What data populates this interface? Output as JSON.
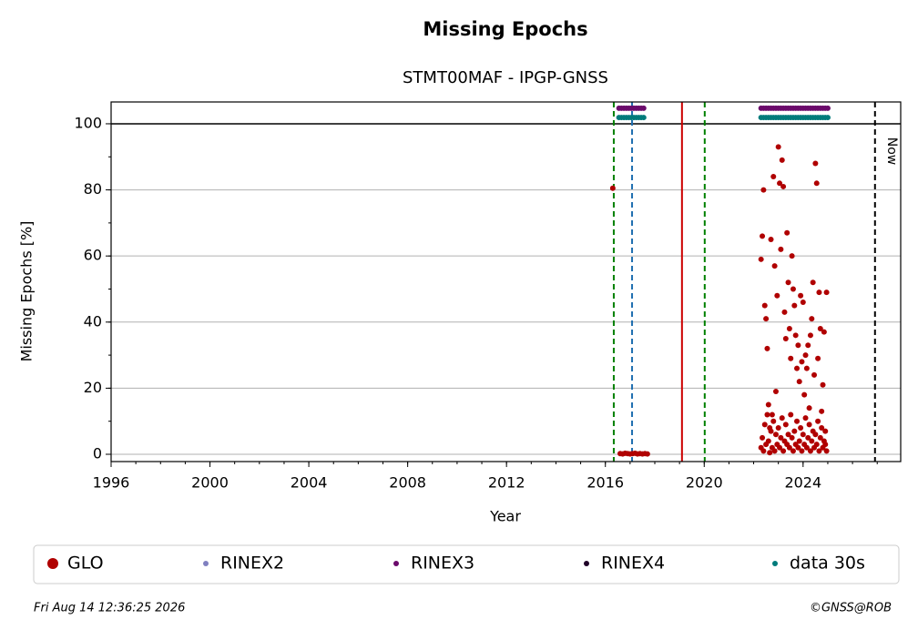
{
  "chart_data": {
    "type": "scatter",
    "title": "Missing Epochs",
    "subtitle": "STMT00MAF - IPGP-GNSS",
    "xlabel": "Year",
    "ylabel": "Missing Epochs [%]",
    "xlim": [
      1996,
      2027.95
    ],
    "ylim": [
      -2.2,
      106.6
    ],
    "xticks": [
      1996,
      2000,
      2004,
      2008,
      2012,
      2016,
      2020,
      2024
    ],
    "yticks": [
      0,
      20,
      40,
      60,
      80,
      100
    ],
    "xminor_step": 1,
    "yminor_step": 10,
    "grid": true,
    "hline": 100,
    "vlines": [
      {
        "x": 2016.34,
        "color": "#008000",
        "dash": true
      },
      {
        "x": 2017.08,
        "color": "#1f6fb0",
        "dash": true
      },
      {
        "x": 2019.1,
        "color": "#cc0000",
        "dash": false
      },
      {
        "x": 2020.02,
        "color": "#008000",
        "dash": true
      },
      {
        "x": 2026.91,
        "color": "#000000",
        "dash": true,
        "label": "Now"
      }
    ],
    "legend": "bottom",
    "series": [
      {
        "name": "GLO",
        "color": "#b00000",
        "x": [
          2016.3,
          2016.6,
          2016.7,
          2016.8,
          2016.9,
          2017.0,
          2017.1,
          2017.2,
          2017.3,
          2017.4,
          2017.5,
          2017.6,
          2017.7,
          2022.3,
          2022.35,
          2022.4,
          2022.45,
          2022.5,
          2022.55,
          2022.6,
          2022.65,
          2022.7,
          2022.75,
          2022.8,
          2022.85,
          2022.9,
          2022.95,
          2023.0,
          2023.05,
          2023.1,
          2023.15,
          2023.2,
          2023.25,
          2023.3,
          2023.35,
          2023.4,
          2023.45,
          2023.5,
          2023.55,
          2023.6,
          2023.65,
          2023.7,
          2023.75,
          2023.8,
          2023.85,
          2023.9,
          2023.95,
          2024.0,
          2024.05,
          2024.1,
          2024.15,
          2024.2,
          2024.25,
          2024.3,
          2024.35,
          2024.4,
          2024.45,
          2024.5,
          2024.55,
          2024.6,
          2024.65,
          2024.7,
          2024.75,
          2024.8,
          2024.85,
          2024.9,
          2024.95,
          2022.3,
          2022.35,
          2022.4,
          2022.45,
          2022.5,
          2022.55,
          2022.6,
          2022.65,
          2022.7,
          2022.75,
          2022.8,
          2022.85,
          2022.9,
          2022.95,
          2023.0,
          2023.05,
          2023.1,
          2023.15,
          2023.2,
          2023.25,
          2023.3,
          2023.35,
          2023.4,
          2023.45,
          2023.5,
          2023.55,
          2023.6,
          2023.65,
          2023.7,
          2023.75,
          2023.8,
          2023.85,
          2023.9,
          2023.95,
          2024.0,
          2024.05,
          2024.1,
          2024.15,
          2024.2,
          2024.25,
          2024.3,
          2024.35,
          2024.4,
          2024.45,
          2024.5,
          2024.55,
          2024.6,
          2024.65,
          2024.7,
          2024.75,
          2024.8,
          2024.85,
          2024.9,
          2024.95
        ],
        "values": [
          80.5,
          0.2,
          0.1,
          0.3,
          0.2,
          0.1,
          0.2,
          0.3,
          0.1,
          0.2,
          0.1,
          0.2,
          0.1,
          59,
          66,
          80,
          45,
          41,
          32,
          15,
          8,
          65,
          12,
          84,
          57,
          19,
          48,
          93,
          82,
          62,
          89,
          81,
          43,
          35,
          67,
          52,
          38,
          29,
          60,
          50,
          45,
          36,
          26,
          33,
          22,
          48,
          28,
          46,
          18,
          30,
          26,
          33,
          14,
          36,
          41,
          52,
          24,
          88,
          82,
          29,
          49,
          38,
          13,
          21,
          37,
          7,
          49,
          2,
          5,
          1,
          9,
          3,
          12,
          4,
          0.5,
          7,
          2,
          10,
          1,
          6,
          3,
          8,
          2,
          5,
          11,
          1,
          4,
          9,
          3,
          6,
          2,
          12,
          5,
          1,
          7,
          3,
          10,
          2,
          4,
          8,
          1,
          6,
          3,
          11,
          2,
          5,
          9,
          1,
          4,
          7,
          2,
          6,
          3,
          10,
          1,
          5,
          8,
          2,
          4,
          3,
          1
        ]
      },
      {
        "name": "RINEX2",
        "color": "#8080c0",
        "x": [],
        "values": []
      },
      {
        "name": "RINEX3",
        "color": "#6b0a6b",
        "x": [
          2016.55,
          2016.65,
          2016.75,
          2016.85,
          2016.95,
          2017.05,
          2017.15,
          2017.25,
          2017.35,
          2017.45,
          2017.55,
          2022.3,
          2022.4,
          2022.5,
          2022.6,
          2022.7,
          2022.8,
          2022.9,
          2023.0,
          2023.1,
          2023.2,
          2023.3,
          2023.4,
          2023.5,
          2023.6,
          2023.7,
          2023.8,
          2023.9,
          2024.0,
          2024.1,
          2024.2,
          2024.3,
          2024.4,
          2024.5,
          2024.6,
          2024.7,
          2024.8,
          2024.9,
          2025.0
        ],
        "values": [
          104.7,
          104.7,
          104.7,
          104.7,
          104.7,
          104.7,
          104.7,
          104.7,
          104.7,
          104.7,
          104.7,
          104.7,
          104.7,
          104.7,
          104.7,
          104.7,
          104.7,
          104.7,
          104.7,
          104.7,
          104.7,
          104.7,
          104.7,
          104.7,
          104.7,
          104.7,
          104.7,
          104.7,
          104.7,
          104.7,
          104.7,
          104.7,
          104.7,
          104.7,
          104.7,
          104.7,
          104.7,
          104.7,
          104.7
        ]
      },
      {
        "name": "RINEX4",
        "color": "#200028",
        "x": [],
        "values": []
      },
      {
        "name": "data 30s",
        "color": "#007b7b",
        "x": [
          2016.55,
          2016.65,
          2016.75,
          2016.85,
          2016.95,
          2017.05,
          2017.15,
          2017.25,
          2017.35,
          2017.45,
          2017.55,
          2022.3,
          2022.4,
          2022.5,
          2022.6,
          2022.7,
          2022.8,
          2022.9,
          2023.0,
          2023.1,
          2023.2,
          2023.3,
          2023.4,
          2023.5,
          2023.6,
          2023.7,
          2023.8,
          2023.9,
          2024.0,
          2024.1,
          2024.2,
          2024.3,
          2024.4,
          2024.5,
          2024.6,
          2024.7,
          2024.8,
          2024.9,
          2025.0
        ],
        "values": [
          101.9,
          101.9,
          101.9,
          101.9,
          101.9,
          101.9,
          101.9,
          101.9,
          101.9,
          101.9,
          101.9,
          101.9,
          101.9,
          101.9,
          101.9,
          101.9,
          101.9,
          101.9,
          101.9,
          101.9,
          101.9,
          101.9,
          101.9,
          101.9,
          101.9,
          101.9,
          101.9,
          101.9,
          101.9,
          101.9,
          101.9,
          101.9,
          101.9,
          101.9,
          101.9,
          101.9,
          101.9,
          101.9,
          101.9
        ]
      }
    ]
  },
  "footer": {
    "date": "Fri Aug 14 12:36:25 2026",
    "credit": "©GNSS@ROB"
  }
}
